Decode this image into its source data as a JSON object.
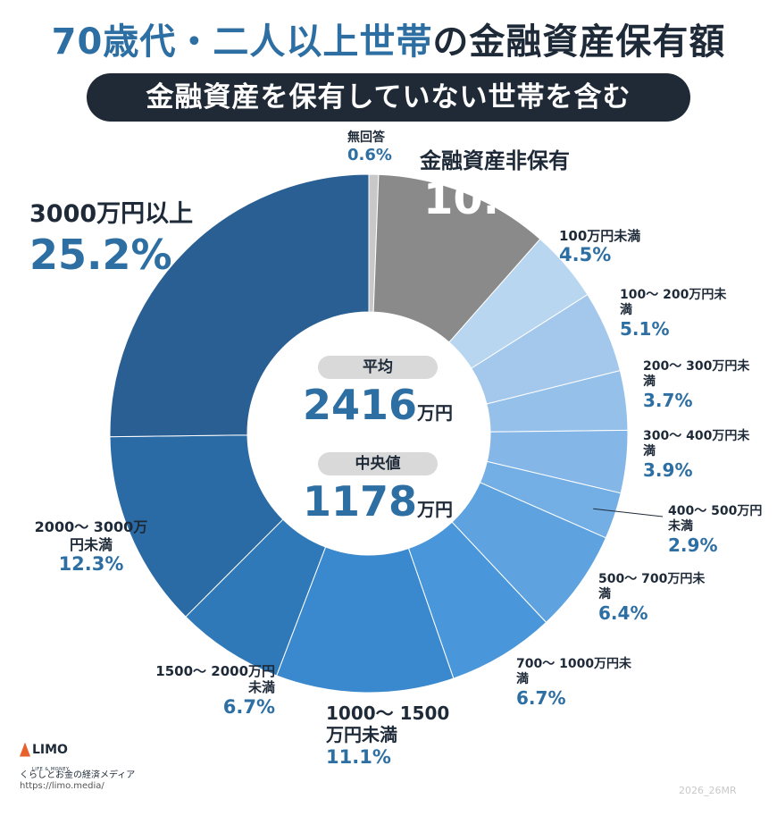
{
  "title": {
    "part1": "70歳代・二人以上世帯",
    "part2": "の金融資産保有額"
  },
  "subtitle": "金融資産を保有していない世帯を含む",
  "center": {
    "avg_label": "平均",
    "avg_value": "2416",
    "avg_unit": "万円",
    "median_label": "中央値",
    "median_value": "1178",
    "median_unit": "万円"
  },
  "footer": {
    "logo": "LIMO",
    "logo_tag": "LIFE & MONEY",
    "tagline": "くらしとお金の経済メディア",
    "url": "https://limo.media/",
    "code": "2026_26MR"
  },
  "chart_data": {
    "type": "pie",
    "donut": true,
    "unit": "%",
    "slices": [
      {
        "label": "無回答",
        "value": 0.6,
        "color": "#c8c8c8"
      },
      {
        "label": "金融資産非保有",
        "value": 10.9,
        "color": "#8a8a8a"
      },
      {
        "label": "100万円未満",
        "value": 4.5,
        "color": "#b9d6f0"
      },
      {
        "label": "100〜 200万円未満",
        "value": 5.1,
        "color": "#a3c8ec"
      },
      {
        "label": "200〜 300万円未満",
        "value": 3.7,
        "color": "#95c0ea"
      },
      {
        "label": "300〜 400万円未満",
        "value": 3.9,
        "color": "#84b7e7"
      },
      {
        "label": "400〜 500万円未満",
        "value": 2.9,
        "color": "#73aee4"
      },
      {
        "label": "500〜 700万円未満",
        "value": 6.4,
        "color": "#5ea3e0"
      },
      {
        "label": "700〜 1000万円未満",
        "value": 6.7,
        "color": "#4997da"
      },
      {
        "label": "1000〜 1500万円未満",
        "value": 11.1,
        "color": "#3a88cd"
      },
      {
        "label": "1500〜 2000万円未満",
        "value": 6.7,
        "color": "#2f79b8"
      },
      {
        "label": "2000〜 3000万円未満",
        "value": 12.3,
        "color": "#2a6ba5"
      },
      {
        "label": "3000万円以上",
        "value": 25.2,
        "color": "#2a5f93"
      }
    ]
  }
}
